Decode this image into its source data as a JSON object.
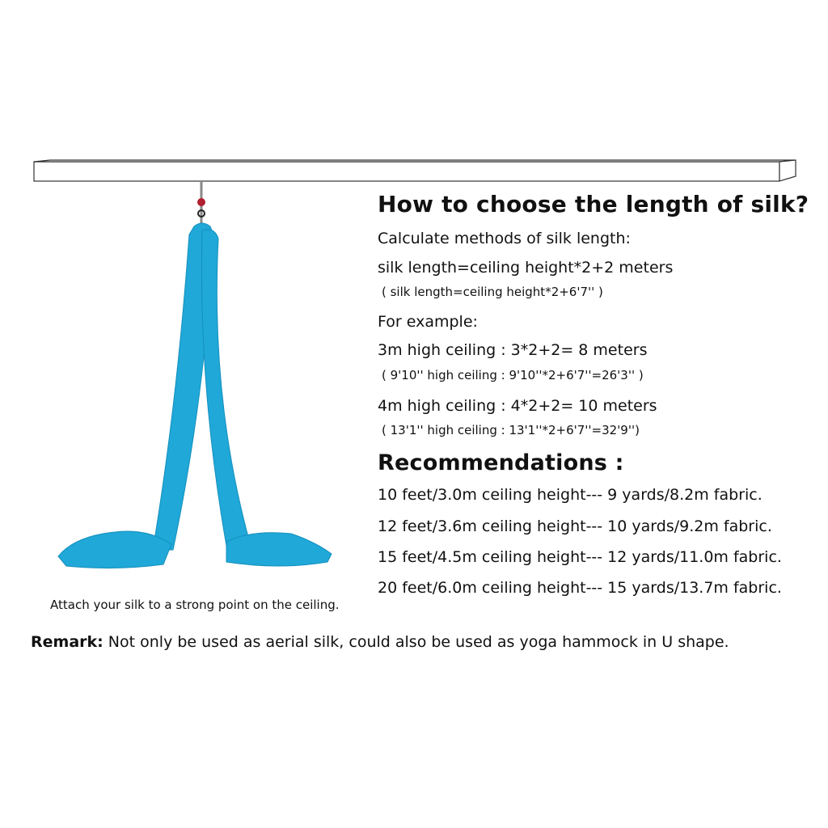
{
  "title": "How to choose the length of silk?",
  "methods_label": "Calculate methods of silk length:",
  "formula_metric": "silk length=ceiling height*2+2 meters",
  "formula_imperial": "( silk length=ceiling height*2+6'7'' )",
  "example_label": "For example:",
  "examples": [
    {
      "metric": "3m high ceiling : 3*2+2= 8 meters",
      "imperial": "( 9'10'' high ceiling :   9'10''*2+6'7''=26'3'' )"
    },
    {
      "metric": "4m high ceiling : 4*2+2= 10 meters",
      "imperial": "( 13'1'' high ceiling :   13'1''*2+6'7''=32'9'')"
    }
  ],
  "recommendations_title": "Recommendations :",
  "recommendations": [
    "10 feet/3.0m ceiling height--- 9 yards/8.2m fabric.",
    "12 feet/3.6m ceiling height--- 10 yards/9.2m fabric.",
    "15 feet/4.5m ceiling height--- 12 yards/11.0m fabric.",
    "20 feet/6.0m ceiling height--- 15 yards/13.7m fabric."
  ],
  "caption": "Attach your silk to a strong point on the ceiling.",
  "remark_label": "Remark:",
  "remark_text": "Not only be used as aerial silk, could also be used as yoga hammock in U shape.",
  "colors": {
    "silk": "#1fa8d8",
    "hardware": "#b02030"
  }
}
